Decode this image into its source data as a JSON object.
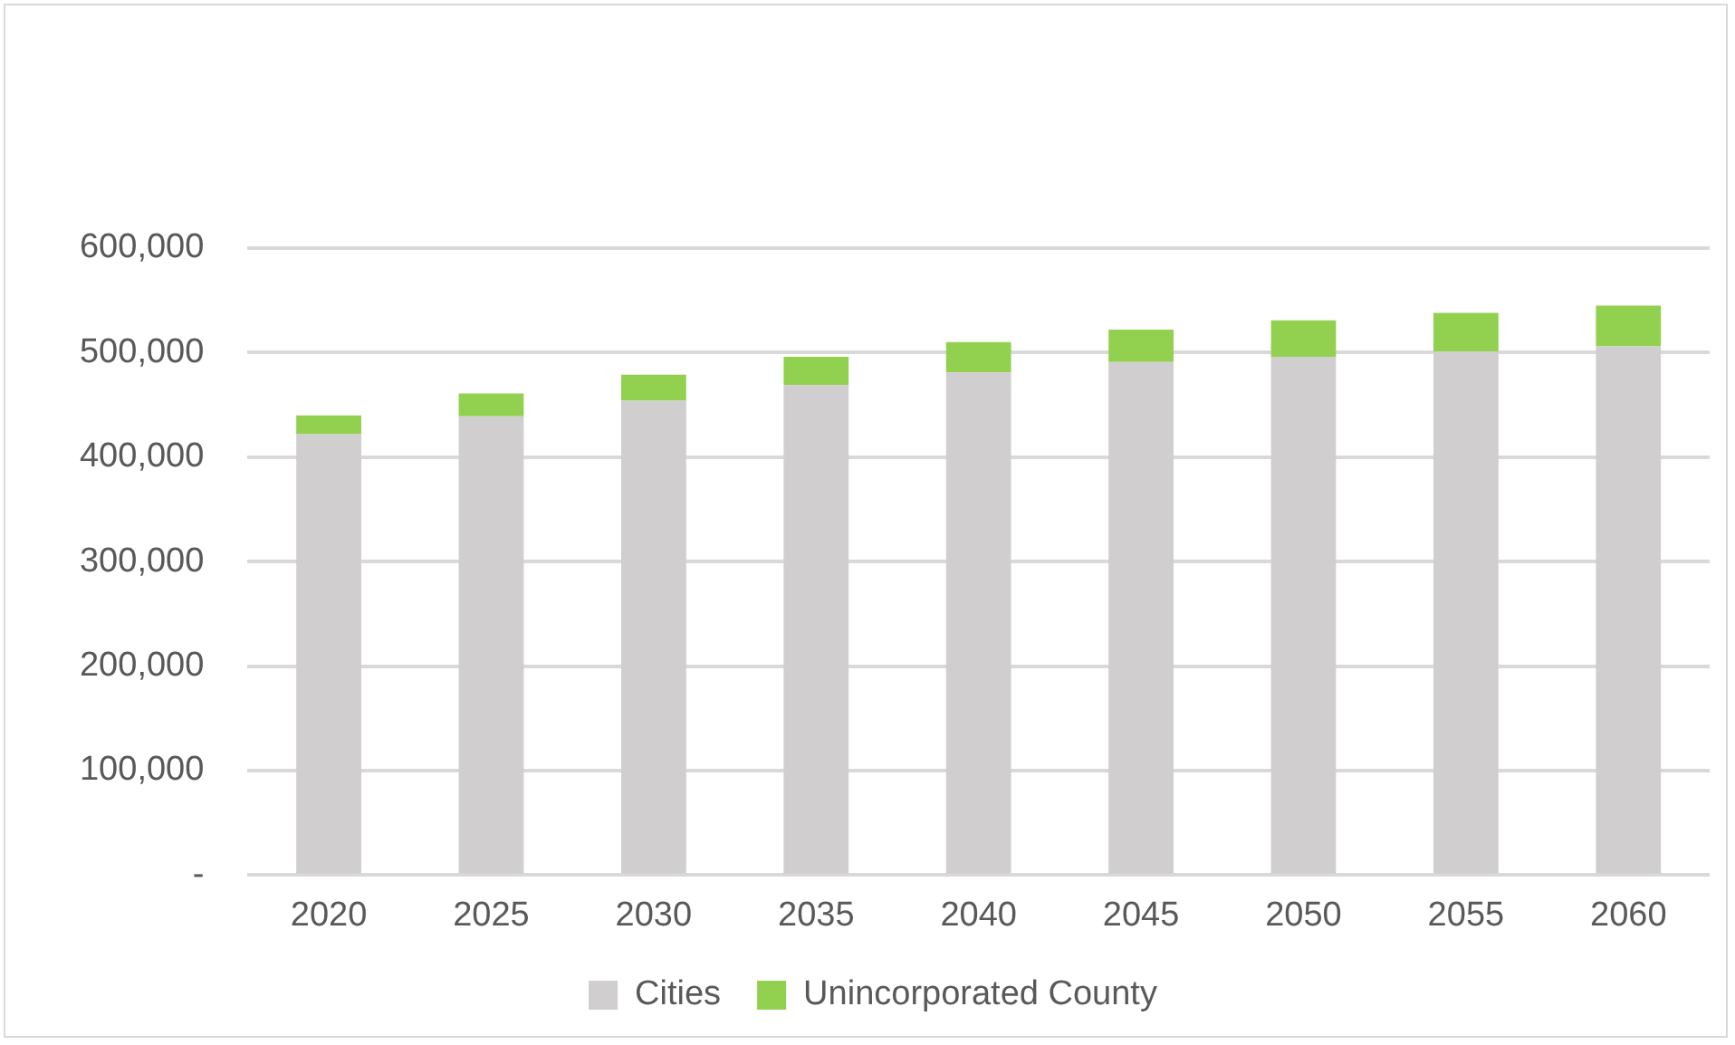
{
  "chart_data": {
    "type": "bar",
    "stacked": true,
    "categories": [
      "2020",
      "2025",
      "2030",
      "2035",
      "2040",
      "2045",
      "2050",
      "2055",
      "2060"
    ],
    "series": [
      {
        "name": "Cities",
        "color": "#d0cece",
        "values": [
          422000,
          439000,
          454000,
          469000,
          481000,
          491000,
          496000,
          501000,
          506000
        ]
      },
      {
        "name": "Unincorporated County",
        "color": "#92d050",
        "values": [
          18000,
          22000,
          25000,
          27000,
          29000,
          31000,
          35000,
          37000,
          39000
        ]
      }
    ],
    "ylim": [
      0,
      600000
    ],
    "yticks": [
      {
        "value": 0,
        "label": "-"
      },
      {
        "value": 100000,
        "label": "100,000"
      },
      {
        "value": 200000,
        "label": "200,000"
      },
      {
        "value": 300000,
        "label": "300,000"
      },
      {
        "value": 400000,
        "label": "400,000"
      },
      {
        "value": 500000,
        "label": "500,000"
      },
      {
        "value": 600000,
        "label": "600,000"
      }
    ],
    "grid": "y",
    "legend": "bottom"
  }
}
